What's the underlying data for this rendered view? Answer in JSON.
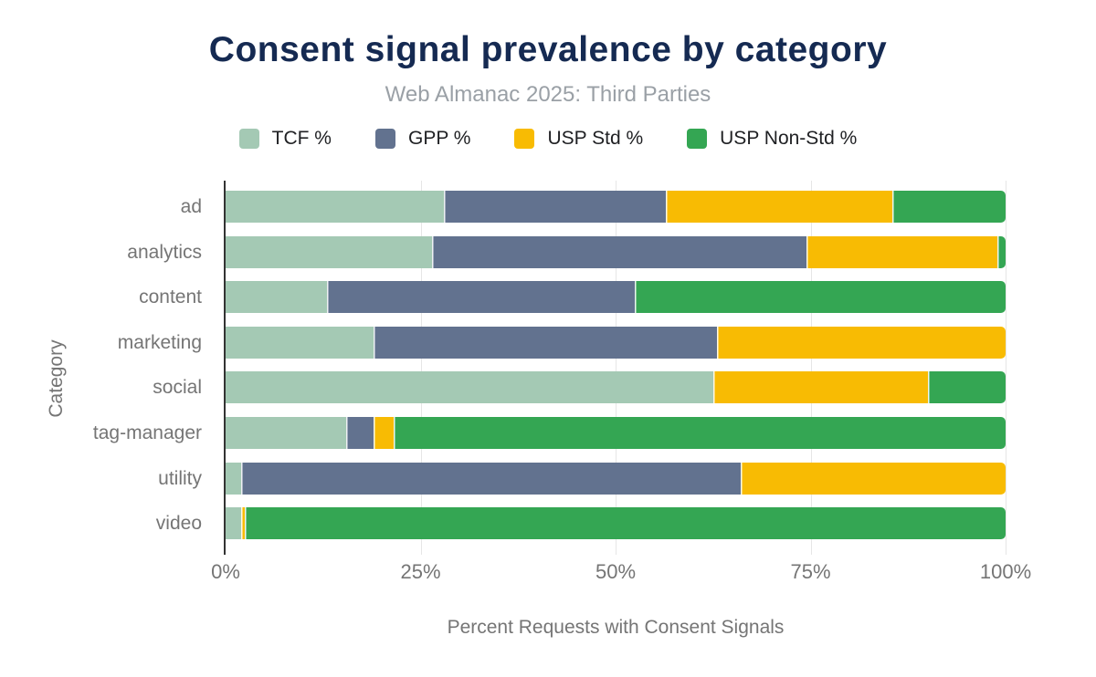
{
  "chart_data": {
    "type": "bar",
    "orientation": "horizontal",
    "stacked": true,
    "title": "Consent signal prevalence by category",
    "subtitle": "Web Almanac 2025: Third Parties",
    "xlabel": "Percent Requests with Consent Signals",
    "ylabel": "Category",
    "categories": [
      "ad",
      "analytics",
      "content",
      "marketing",
      "social",
      "tag-manager",
      "utility",
      "video"
    ],
    "series": [
      {
        "name": "TCF %",
        "color": "#a4c9b4",
        "values": [
          28,
          26.5,
          13,
          19,
          62.5,
          15.5,
          2,
          2
        ]
      },
      {
        "name": "GPP %",
        "color": "#62728f",
        "values": [
          28.5,
          48,
          39.5,
          44,
          0,
          3.5,
          64,
          0
        ]
      },
      {
        "name": "USP Std %",
        "color": "#f8bb03",
        "values": [
          29,
          24.5,
          0,
          37,
          27.5,
          2.5,
          34,
          0.5
        ]
      },
      {
        "name": "USP Non-Std %",
        "color": "#34a653",
        "values": [
          14.5,
          1,
          47.5,
          0,
          10,
          78.5,
          0,
          97.5
        ]
      }
    ],
    "xlim": [
      0,
      100
    ],
    "x_ticks": [
      "0%",
      "25%",
      "50%",
      "75%",
      "100%"
    ],
    "legend_position": "top",
    "grid": "vertical",
    "colors": {
      "title": "#152a52",
      "subtitle": "#9aa0a6",
      "axis_text": "#757575",
      "legend_text": "#202124",
      "gridline": "#e6e6e6",
      "axis_line": "#333333",
      "background": "#ffffff"
    }
  }
}
